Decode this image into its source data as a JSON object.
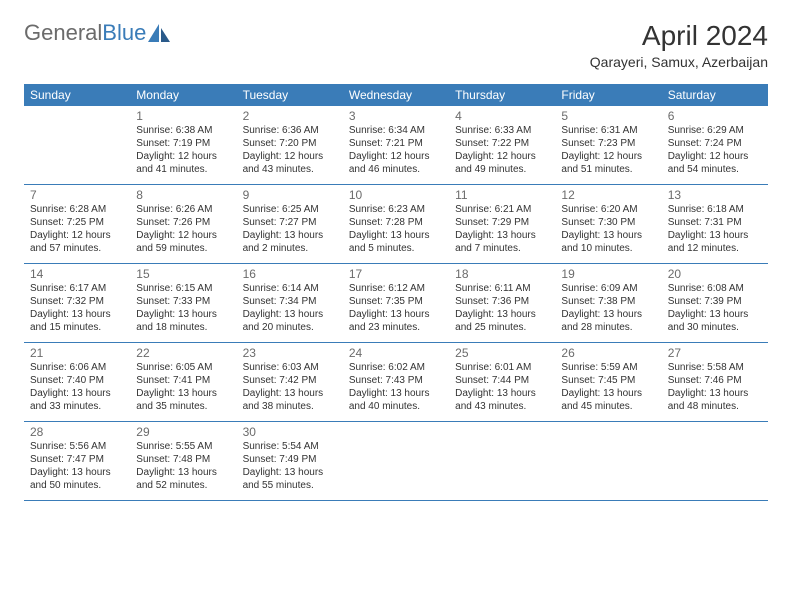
{
  "logo": {
    "word1": "General",
    "word2": "Blue"
  },
  "title": "April 2024",
  "location": "Qarayeri, Samux, Azerbaijan",
  "weekdays": [
    "Sunday",
    "Monday",
    "Tuesday",
    "Wednesday",
    "Thursday",
    "Friday",
    "Saturday"
  ],
  "colors": {
    "header_bg": "#3a7cb8",
    "header_text": "#ffffff",
    "body_text": "#333333",
    "daynum_text": "#6b6b6b",
    "row_border": "#3a7cb8",
    "background": "#ffffff"
  },
  "weeks": [
    [
      {
        "n": "",
        "sr": "",
        "ss": "",
        "dl": ""
      },
      {
        "n": "1",
        "sr": "Sunrise: 6:38 AM",
        "ss": "Sunset: 7:19 PM",
        "dl": "Daylight: 12 hours and 41 minutes."
      },
      {
        "n": "2",
        "sr": "Sunrise: 6:36 AM",
        "ss": "Sunset: 7:20 PM",
        "dl": "Daylight: 12 hours and 43 minutes."
      },
      {
        "n": "3",
        "sr": "Sunrise: 6:34 AM",
        "ss": "Sunset: 7:21 PM",
        "dl": "Daylight: 12 hours and 46 minutes."
      },
      {
        "n": "4",
        "sr": "Sunrise: 6:33 AM",
        "ss": "Sunset: 7:22 PM",
        "dl": "Daylight: 12 hours and 49 minutes."
      },
      {
        "n": "5",
        "sr": "Sunrise: 6:31 AM",
        "ss": "Sunset: 7:23 PM",
        "dl": "Daylight: 12 hours and 51 minutes."
      },
      {
        "n": "6",
        "sr": "Sunrise: 6:29 AM",
        "ss": "Sunset: 7:24 PM",
        "dl": "Daylight: 12 hours and 54 minutes."
      }
    ],
    [
      {
        "n": "7",
        "sr": "Sunrise: 6:28 AM",
        "ss": "Sunset: 7:25 PM",
        "dl": "Daylight: 12 hours and 57 minutes."
      },
      {
        "n": "8",
        "sr": "Sunrise: 6:26 AM",
        "ss": "Sunset: 7:26 PM",
        "dl": "Daylight: 12 hours and 59 minutes."
      },
      {
        "n": "9",
        "sr": "Sunrise: 6:25 AM",
        "ss": "Sunset: 7:27 PM",
        "dl": "Daylight: 13 hours and 2 minutes."
      },
      {
        "n": "10",
        "sr": "Sunrise: 6:23 AM",
        "ss": "Sunset: 7:28 PM",
        "dl": "Daylight: 13 hours and 5 minutes."
      },
      {
        "n": "11",
        "sr": "Sunrise: 6:21 AM",
        "ss": "Sunset: 7:29 PM",
        "dl": "Daylight: 13 hours and 7 minutes."
      },
      {
        "n": "12",
        "sr": "Sunrise: 6:20 AM",
        "ss": "Sunset: 7:30 PM",
        "dl": "Daylight: 13 hours and 10 minutes."
      },
      {
        "n": "13",
        "sr": "Sunrise: 6:18 AM",
        "ss": "Sunset: 7:31 PM",
        "dl": "Daylight: 13 hours and 12 minutes."
      }
    ],
    [
      {
        "n": "14",
        "sr": "Sunrise: 6:17 AM",
        "ss": "Sunset: 7:32 PM",
        "dl": "Daylight: 13 hours and 15 minutes."
      },
      {
        "n": "15",
        "sr": "Sunrise: 6:15 AM",
        "ss": "Sunset: 7:33 PM",
        "dl": "Daylight: 13 hours and 18 minutes."
      },
      {
        "n": "16",
        "sr": "Sunrise: 6:14 AM",
        "ss": "Sunset: 7:34 PM",
        "dl": "Daylight: 13 hours and 20 minutes."
      },
      {
        "n": "17",
        "sr": "Sunrise: 6:12 AM",
        "ss": "Sunset: 7:35 PM",
        "dl": "Daylight: 13 hours and 23 minutes."
      },
      {
        "n": "18",
        "sr": "Sunrise: 6:11 AM",
        "ss": "Sunset: 7:36 PM",
        "dl": "Daylight: 13 hours and 25 minutes."
      },
      {
        "n": "19",
        "sr": "Sunrise: 6:09 AM",
        "ss": "Sunset: 7:38 PM",
        "dl": "Daylight: 13 hours and 28 minutes."
      },
      {
        "n": "20",
        "sr": "Sunrise: 6:08 AM",
        "ss": "Sunset: 7:39 PM",
        "dl": "Daylight: 13 hours and 30 minutes."
      }
    ],
    [
      {
        "n": "21",
        "sr": "Sunrise: 6:06 AM",
        "ss": "Sunset: 7:40 PM",
        "dl": "Daylight: 13 hours and 33 minutes."
      },
      {
        "n": "22",
        "sr": "Sunrise: 6:05 AM",
        "ss": "Sunset: 7:41 PM",
        "dl": "Daylight: 13 hours and 35 minutes."
      },
      {
        "n": "23",
        "sr": "Sunrise: 6:03 AM",
        "ss": "Sunset: 7:42 PM",
        "dl": "Daylight: 13 hours and 38 minutes."
      },
      {
        "n": "24",
        "sr": "Sunrise: 6:02 AM",
        "ss": "Sunset: 7:43 PM",
        "dl": "Daylight: 13 hours and 40 minutes."
      },
      {
        "n": "25",
        "sr": "Sunrise: 6:01 AM",
        "ss": "Sunset: 7:44 PM",
        "dl": "Daylight: 13 hours and 43 minutes."
      },
      {
        "n": "26",
        "sr": "Sunrise: 5:59 AM",
        "ss": "Sunset: 7:45 PM",
        "dl": "Daylight: 13 hours and 45 minutes."
      },
      {
        "n": "27",
        "sr": "Sunrise: 5:58 AM",
        "ss": "Sunset: 7:46 PM",
        "dl": "Daylight: 13 hours and 48 minutes."
      }
    ],
    [
      {
        "n": "28",
        "sr": "Sunrise: 5:56 AM",
        "ss": "Sunset: 7:47 PM",
        "dl": "Daylight: 13 hours and 50 minutes."
      },
      {
        "n": "29",
        "sr": "Sunrise: 5:55 AM",
        "ss": "Sunset: 7:48 PM",
        "dl": "Daylight: 13 hours and 52 minutes."
      },
      {
        "n": "30",
        "sr": "Sunrise: 5:54 AM",
        "ss": "Sunset: 7:49 PM",
        "dl": "Daylight: 13 hours and 55 minutes."
      },
      {
        "n": "",
        "sr": "",
        "ss": "",
        "dl": ""
      },
      {
        "n": "",
        "sr": "",
        "ss": "",
        "dl": ""
      },
      {
        "n": "",
        "sr": "",
        "ss": "",
        "dl": ""
      },
      {
        "n": "",
        "sr": "",
        "ss": "",
        "dl": ""
      }
    ]
  ]
}
